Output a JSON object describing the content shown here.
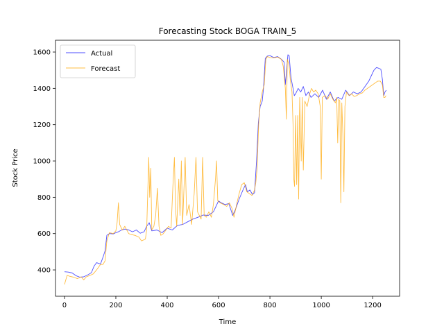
{
  "chart_data": {
    "type": "line",
    "title": "Forecasting Stock BOGA TRAIN_5",
    "xlabel": "Time",
    "ylabel": "Stock Price",
    "xlim": [
      -35,
      1305
    ],
    "ylim": [
      255,
      1665
    ],
    "xticks": [
      0,
      200,
      400,
      600,
      800,
      1000,
      1200
    ],
    "yticks": [
      400,
      600,
      800,
      1000,
      1200,
      1400,
      1600
    ],
    "grid": false,
    "legend_position": "upper left",
    "series": [
      {
        "name": "Actual",
        "color": "#0000ff",
        "opacity": 0.7,
        "points": [
          [
            0,
            390
          ],
          [
            15,
            388
          ],
          [
            30,
            383
          ],
          [
            45,
            368
          ],
          [
            60,
            360
          ],
          [
            75,
            362
          ],
          [
            90,
            372
          ],
          [
            105,
            385
          ],
          [
            115,
            420
          ],
          [
            125,
            440
          ],
          [
            140,
            432
          ],
          [
            150,
            470
          ],
          [
            158,
            505
          ],
          [
            165,
            590
          ],
          [
            175,
            600
          ],
          [
            190,
            598
          ],
          [
            200,
            605
          ],
          [
            210,
            610
          ],
          [
            220,
            618
          ],
          [
            235,
            625
          ],
          [
            250,
            620
          ],
          [
            265,
            610
          ],
          [
            280,
            620
          ],
          [
            295,
            602
          ],
          [
            310,
            610
          ],
          [
            320,
            640
          ],
          [
            330,
            660
          ],
          [
            340,
            615
          ],
          [
            360,
            620
          ],
          [
            380,
            605
          ],
          [
            400,
            630
          ],
          [
            420,
            620
          ],
          [
            440,
            645
          ],
          [
            460,
            650
          ],
          [
            480,
            665
          ],
          [
            500,
            680
          ],
          [
            520,
            690
          ],
          [
            540,
            702
          ],
          [
            560,
            700
          ],
          [
            580,
            720
          ],
          [
            590,
            750
          ],
          [
            600,
            780
          ],
          [
            610,
            770
          ],
          [
            625,
            760
          ],
          [
            640,
            765
          ],
          [
            655,
            700
          ],
          [
            665,
            730
          ],
          [
            680,
            790
          ],
          [
            695,
            840
          ],
          [
            705,
            870
          ],
          [
            712,
            830
          ],
          [
            722,
            840
          ],
          [
            732,
            815
          ],
          [
            740,
            825
          ],
          [
            748,
            1000
          ],
          [
            755,
            1210
          ],
          [
            762,
            1300
          ],
          [
            770,
            1330
          ],
          [
            775,
            1400
          ],
          [
            782,
            1565
          ],
          [
            790,
            1578
          ],
          [
            800,
            1580
          ],
          [
            815,
            1570
          ],
          [
            830,
            1575
          ],
          [
            845,
            1560
          ],
          [
            855,
            1545
          ],
          [
            860,
            1420
          ],
          [
            865,
            1500
          ],
          [
            870,
            1585
          ],
          [
            875,
            1580
          ],
          [
            882,
            1460
          ],
          [
            890,
            1400
          ],
          [
            895,
            1360
          ],
          [
            900,
            1370
          ],
          [
            910,
            1400
          ],
          [
            920,
            1380
          ],
          [
            930,
            1410
          ],
          [
            940,
            1360
          ],
          [
            950,
            1380
          ],
          [
            960,
            1350
          ],
          [
            975,
            1370
          ],
          [
            990,
            1350
          ],
          [
            1005,
            1390
          ],
          [
            1020,
            1340
          ],
          [
            1035,
            1380
          ],
          [
            1050,
            1330
          ],
          [
            1065,
            1350
          ],
          [
            1080,
            1340
          ],
          [
            1095,
            1390
          ],
          [
            1110,
            1360
          ],
          [
            1125,
            1380
          ],
          [
            1140,
            1370
          ],
          [
            1155,
            1380
          ],
          [
            1165,
            1400
          ],
          [
            1175,
            1420
          ],
          [
            1185,
            1440
          ],
          [
            1195,
            1470
          ],
          [
            1205,
            1500
          ],
          [
            1215,
            1515
          ],
          [
            1225,
            1510
          ],
          [
            1232,
            1505
          ],
          [
            1238,
            1450
          ],
          [
            1243,
            1360
          ],
          [
            1248,
            1380
          ],
          [
            1253,
            1390
          ]
        ]
      },
      {
        "name": "Forecast",
        "color": "#ffa500",
        "opacity": 0.75,
        "points": [
          [
            0,
            320
          ],
          [
            10,
            370
          ],
          [
            20,
            365
          ],
          [
            35,
            360
          ],
          [
            50,
            352
          ],
          [
            65,
            362
          ],
          [
            75,
            345
          ],
          [
            85,
            362
          ],
          [
            100,
            370
          ],
          [
            112,
            378
          ],
          [
            125,
            400
          ],
          [
            140,
            430
          ],
          [
            150,
            430
          ],
          [
            158,
            450
          ],
          [
            165,
            560
          ],
          [
            175,
            605
          ],
          [
            190,
            600
          ],
          [
            200,
            615
          ],
          [
            205,
            660
          ],
          [
            210,
            770
          ],
          [
            215,
            650
          ],
          [
            225,
            620
          ],
          [
            235,
            640
          ],
          [
            250,
            600
          ],
          [
            260,
            595
          ],
          [
            275,
            590
          ],
          [
            290,
            580
          ],
          [
            300,
            560
          ],
          [
            315,
            570
          ],
          [
            320,
            620
          ],
          [
            325,
            870
          ],
          [
            328,
            1020
          ],
          [
            332,
            800
          ],
          [
            336,
            960
          ],
          [
            340,
            620
          ],
          [
            348,
            640
          ],
          [
            355,
            700
          ],
          [
            362,
            850
          ],
          [
            368,
            640
          ],
          [
            375,
            590
          ],
          [
            385,
            600
          ],
          [
            395,
            620
          ],
          [
            405,
            640
          ],
          [
            415,
            630
          ],
          [
            422,
            860
          ],
          [
            428,
            1020
          ],
          [
            432,
            750
          ],
          [
            437,
            640
          ],
          [
            445,
            900
          ],
          [
            450,
            700
          ],
          [
            455,
            1000
          ],
          [
            460,
            650
          ],
          [
            470,
            1020
          ],
          [
            476,
            700
          ],
          [
            485,
            760
          ],
          [
            495,
            650
          ],
          [
            505,
            820
          ],
          [
            512,
            1020
          ],
          [
            518,
            720
          ],
          [
            525,
            700
          ],
          [
            532,
            680
          ],
          [
            538,
            1020
          ],
          [
            544,
            700
          ],
          [
            552,
            690
          ],
          [
            562,
            720
          ],
          [
            572,
            690
          ],
          [
            580,
            760
          ],
          [
            588,
            900
          ],
          [
            592,
            1000
          ],
          [
            597,
            780
          ],
          [
            605,
            770
          ],
          [
            620,
            760
          ],
          [
            632,
            750
          ],
          [
            642,
            770
          ],
          [
            652,
            740
          ],
          [
            660,
            690
          ],
          [
            670,
            760
          ],
          [
            680,
            820
          ],
          [
            690,
            870
          ],
          [
            700,
            880
          ],
          [
            710,
            830
          ],
          [
            720,
            820
          ],
          [
            730,
            810
          ],
          [
            740,
            840
          ],
          [
            745,
            880
          ],
          [
            750,
            960
          ],
          [
            756,
            1200
          ],
          [
            762,
            1320
          ],
          [
            770,
            1380
          ],
          [
            778,
            1420
          ],
          [
            784,
            1560
          ],
          [
            790,
            1575
          ],
          [
            800,
            1570
          ],
          [
            815,
            1568
          ],
          [
            830,
            1572
          ],
          [
            845,
            1560
          ],
          [
            852,
            1520
          ],
          [
            860,
            1400
          ],
          [
            864,
            1230
          ],
          [
            868,
            1560
          ],
          [
            874,
            1530
          ],
          [
            880,
            1440
          ],
          [
            886,
            1380
          ],
          [
            890,
            1200
          ],
          [
            893,
            900
          ],
          [
            896,
            860
          ],
          [
            900,
            1250
          ],
          [
            904,
            870
          ],
          [
            908,
            1250
          ],
          [
            912,
            790
          ],
          [
            916,
            1350
          ],
          [
            922,
            1000
          ],
          [
            926,
            1350
          ],
          [
            930,
            950
          ],
          [
            936,
            1330
          ],
          [
            945,
            1300
          ],
          [
            955,
            1370
          ],
          [
            962,
            1400
          ],
          [
            970,
            1380
          ],
          [
            978,
            1390
          ],
          [
            988,
            1370
          ],
          [
            996,
            1300
          ],
          [
            1000,
            900
          ],
          [
            1004,
            1350
          ],
          [
            1015,
            1360
          ],
          [
            1025,
            1340
          ],
          [
            1035,
            1370
          ],
          [
            1045,
            1340
          ],
          [
            1055,
            1320
          ],
          [
            1060,
            1350
          ],
          [
            1064,
            1100
          ],
          [
            1068,
            1340
          ],
          [
            1072,
            1330
          ],
          [
            1076,
            770
          ],
          [
            1080,
            1320
          ],
          [
            1084,
            1150
          ],
          [
            1088,
            830
          ],
          [
            1092,
            1300
          ],
          [
            1098,
            1380
          ],
          [
            1108,
            1360
          ],
          [
            1118,
            1370
          ],
          [
            1128,
            1355
          ],
          [
            1138,
            1360
          ],
          [
            1150,
            1370
          ],
          [
            1160,
            1375
          ],
          [
            1170,
            1390
          ],
          [
            1180,
            1400
          ],
          [
            1190,
            1410
          ],
          [
            1200,
            1420
          ],
          [
            1210,
            1430
          ],
          [
            1220,
            1440
          ],
          [
            1230,
            1440
          ],
          [
            1238,
            1420
          ],
          [
            1243,
            1350
          ],
          [
            1248,
            1350
          ],
          [
            1252,
            1360
          ]
        ]
      }
    ]
  }
}
